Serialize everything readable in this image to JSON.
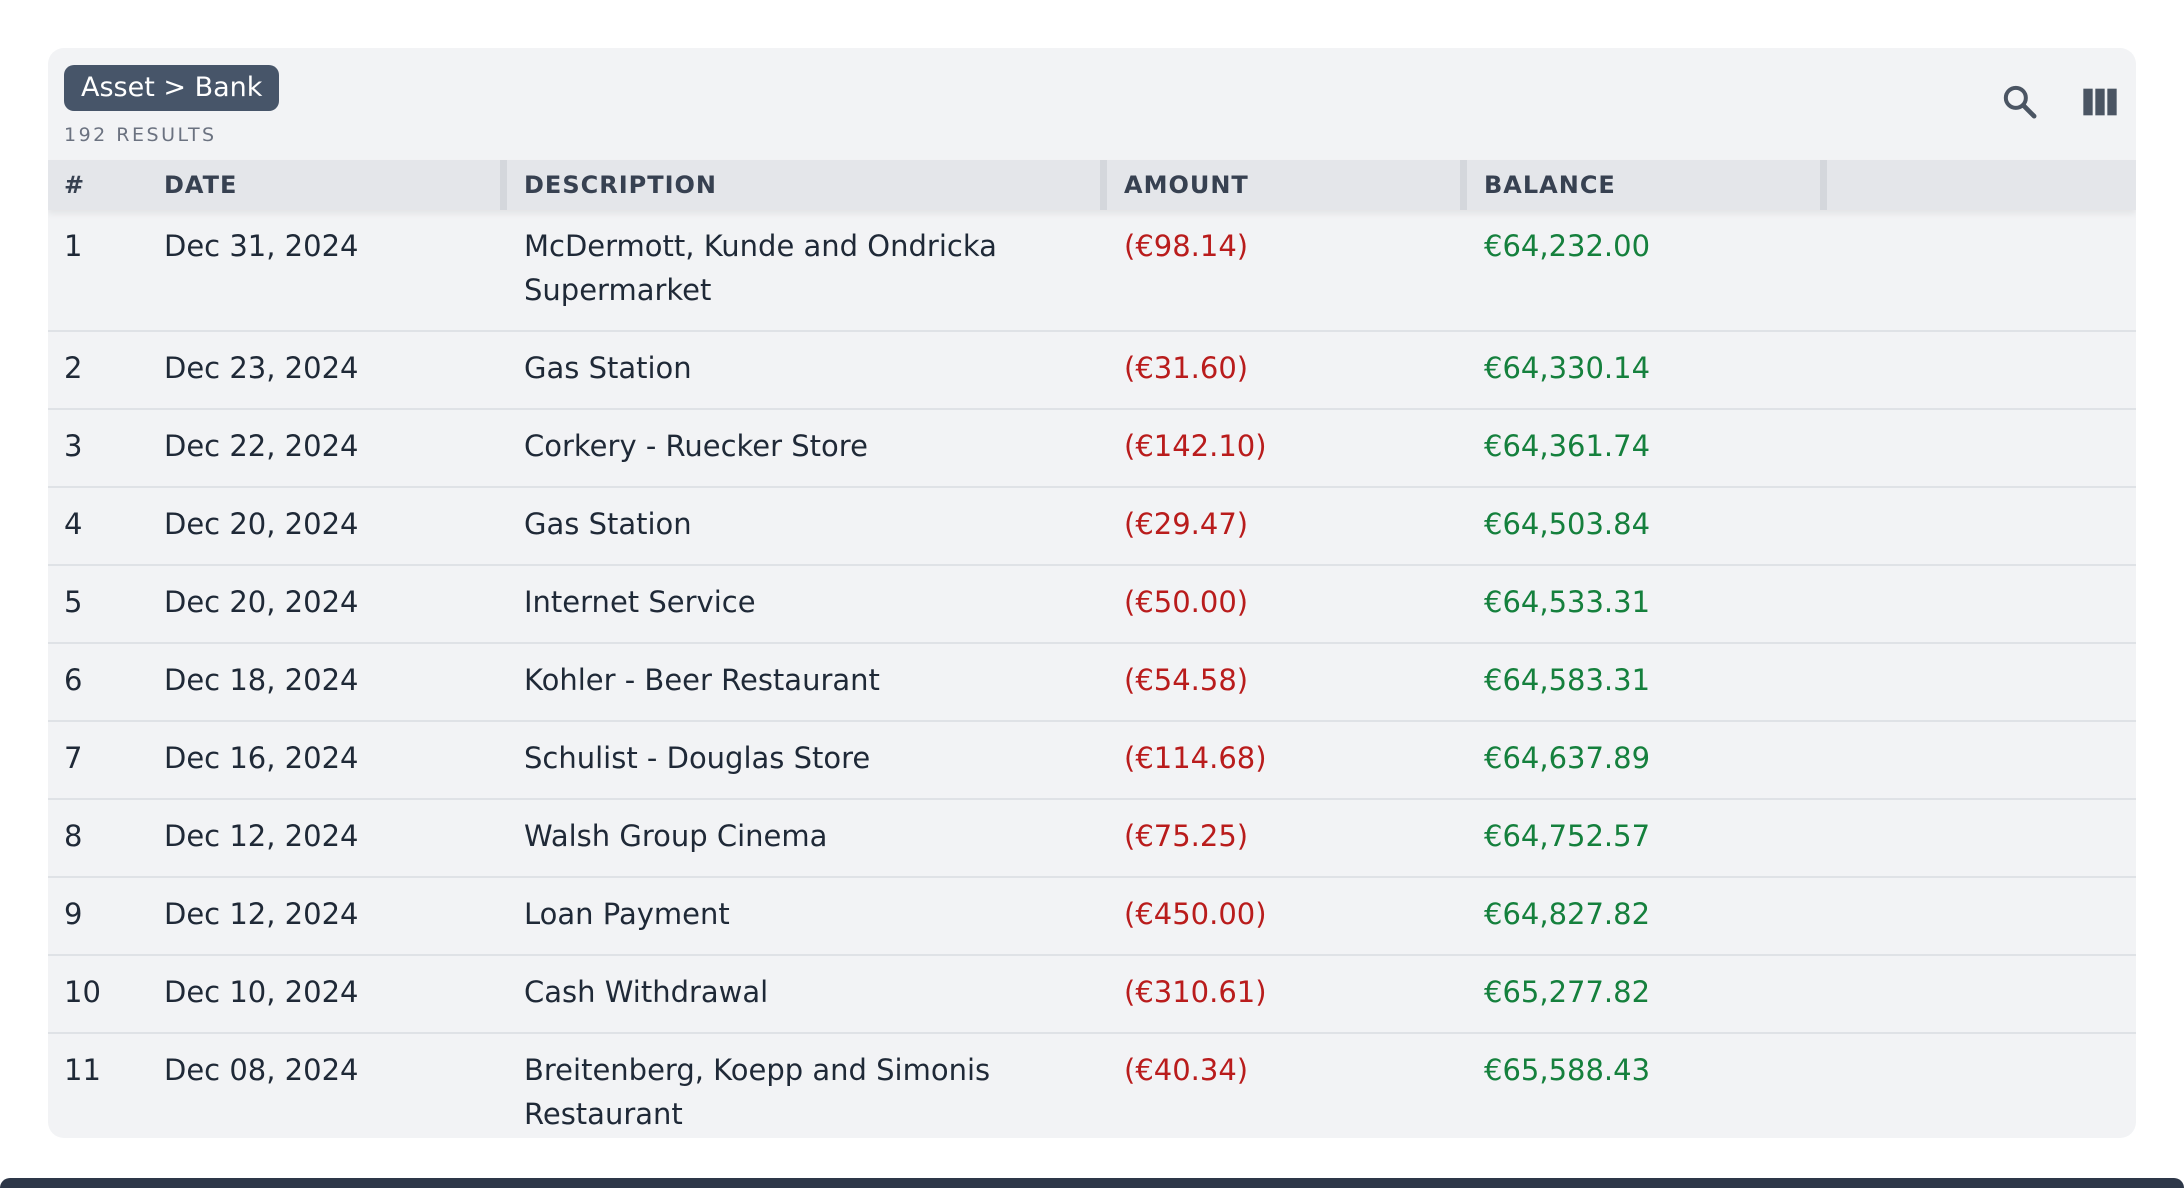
{
  "header": {
    "breadcrumb": "Asset > Bank",
    "results": "192 RESULTS"
  },
  "toolbar": {
    "search_icon": "search-icon",
    "columns_icon": "columns-icon"
  },
  "table": {
    "columns": [
      "#",
      "DATE",
      "DESCRIPTION",
      "AMOUNT",
      "BALANCE"
    ],
    "rows": [
      {
        "num": "1",
        "date": "Dec 31, 2024",
        "description": "McDermott, Kunde and Ondricka Supermarket",
        "amount": "(€98.14)",
        "balance": "€64,232.00"
      },
      {
        "num": "2",
        "date": "Dec 23, 2024",
        "description": "Gas Station",
        "amount": "(€31.60)",
        "balance": "€64,330.14"
      },
      {
        "num": "3",
        "date": "Dec 22, 2024",
        "description": "Corkery - Ruecker Store",
        "amount": "(€142.10)",
        "balance": "€64,361.74"
      },
      {
        "num": "4",
        "date": "Dec 20, 2024",
        "description": "Gas Station",
        "amount": "(€29.47)",
        "balance": "€64,503.84"
      },
      {
        "num": "5",
        "date": "Dec 20, 2024",
        "description": "Internet Service",
        "amount": "(€50.00)",
        "balance": "€64,533.31"
      },
      {
        "num": "6",
        "date": "Dec 18, 2024",
        "description": "Kohler - Beer Restaurant",
        "amount": "(€54.58)",
        "balance": "€64,583.31"
      },
      {
        "num": "7",
        "date": "Dec 16, 2024",
        "description": "Schulist - Douglas Store",
        "amount": "(€114.68)",
        "balance": "€64,637.89"
      },
      {
        "num": "8",
        "date": "Dec 12, 2024",
        "description": "Walsh Group Cinema",
        "amount": "(€75.25)",
        "balance": "€64,752.57"
      },
      {
        "num": "9",
        "date": "Dec 12, 2024",
        "description": "Loan Payment",
        "amount": "(€450.00)",
        "balance": "€64,827.82"
      },
      {
        "num": "10",
        "date": "Dec 10, 2024",
        "description": "Cash Withdrawal",
        "amount": "(€310.61)",
        "balance": "€65,277.82"
      },
      {
        "num": "11",
        "date": "Dec 08, 2024",
        "description": "Breitenberg, Koepp and Simonis Restaurant",
        "amount": "(€40.34)",
        "balance": "€65,588.43"
      }
    ]
  },
  "colors": {
    "negative": "#b91c1c",
    "positive": "#15803d",
    "breadcrumb_bg": "#475569"
  }
}
